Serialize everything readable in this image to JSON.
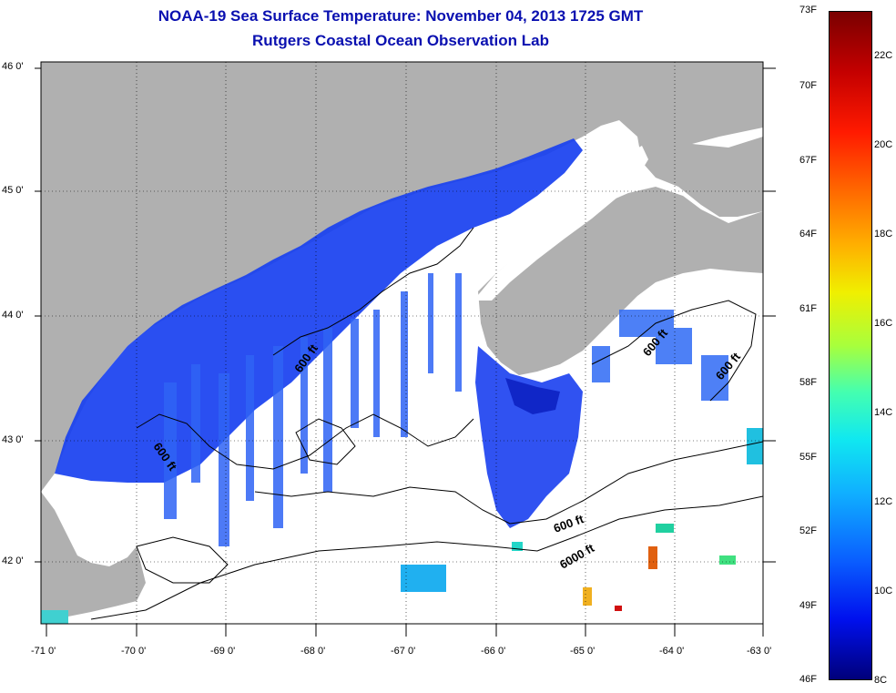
{
  "header": {
    "title_line1": "NOAA-19 Sea Surface Temperature:  November 04, 2013 1725 GMT",
    "title_line2": "Rutgers Coastal Ocean Observation Lab"
  },
  "map": {
    "lat_labels": [
      "46 0'",
      "45 0'",
      "44 0'",
      "43 0'",
      "42 0'"
    ],
    "lon_labels": [
      "-71 0'",
      "-70 0'",
      "-69 0'",
      "-68 0'",
      "-67 0'",
      "-66 0'",
      "-65 0'",
      "-64 0'",
      "-63 0'"
    ],
    "contour_labels": [
      "600 ft",
      "600 ft",
      "600 ft",
      "600 ft",
      "600 ft",
      "6000 ft"
    ],
    "colors": {
      "land": "#b0b0b0",
      "cloud": "#ffffff",
      "water_dark": "#1030e8",
      "water_light": "#3a7aff",
      "contour": "#000000"
    }
  },
  "colorbar": {
    "fahrenheit": [
      "73F",
      "70F",
      "67F",
      "64F",
      "61F",
      "58F",
      "55F",
      "52F",
      "49F",
      "46F"
    ],
    "celsius": [
      "22C",
      "20C",
      "18C",
      "16C",
      "14C",
      "12C",
      "10C",
      "8C"
    ]
  }
}
